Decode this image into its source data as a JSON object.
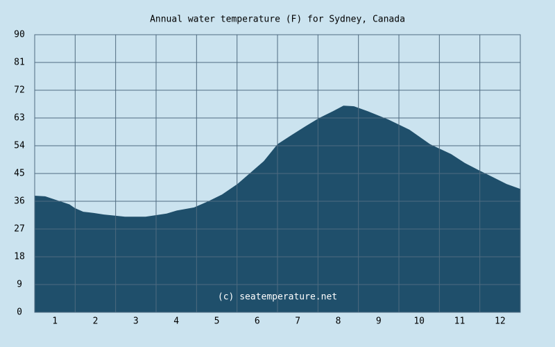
{
  "chart_data": {
    "type": "area",
    "title": "Annual water temperature (F) for Sydney, Canada",
    "annotation": "(c) seatemperature.net",
    "x": [
      0.5,
      0.76,
      1.01,
      1.36,
      1.49,
      1.7,
      1.96,
      2.21,
      2.51,
      2.73,
      3.24,
      3.5,
      3.76,
      4.01,
      4.44,
      4.79,
      5.13,
      5.51,
      5.81,
      6.16,
      6.5,
      6.84,
      7.19,
      7.53,
      7.87,
      8.13,
      8.39,
      8.73,
      9.24,
      9.76,
      10.27,
      10.79,
      11.13,
      11.47,
      11.81,
      12.16,
      12.5
    ],
    "values": [
      37.8,
      37.6,
      36.5,
      35,
      33.8,
      32.6,
      32.2,
      31.7,
      31.3,
      31,
      31,
      31.5,
      32,
      33,
      34,
      36,
      38.2,
      41.6,
      45,
      49,
      54.5,
      57.4,
      60.3,
      63,
      65.2,
      67,
      66.8,
      65.2,
      62.5,
      59.2,
      54.5,
      51.3,
      48.4,
      46.1,
      43.9,
      41.6,
      40
    ],
    "color": "#1f4f6b",
    "xlim": [
      0.5,
      12.5
    ],
    "xticks": [
      1,
      2,
      3,
      4,
      5,
      6,
      7,
      8,
      9,
      10,
      11,
      12
    ],
    "ylim": [
      0,
      90
    ],
    "yticks": [
      0,
      9,
      18,
      27,
      36,
      45,
      54,
      63,
      72,
      81,
      90
    ],
    "grid": true
  }
}
